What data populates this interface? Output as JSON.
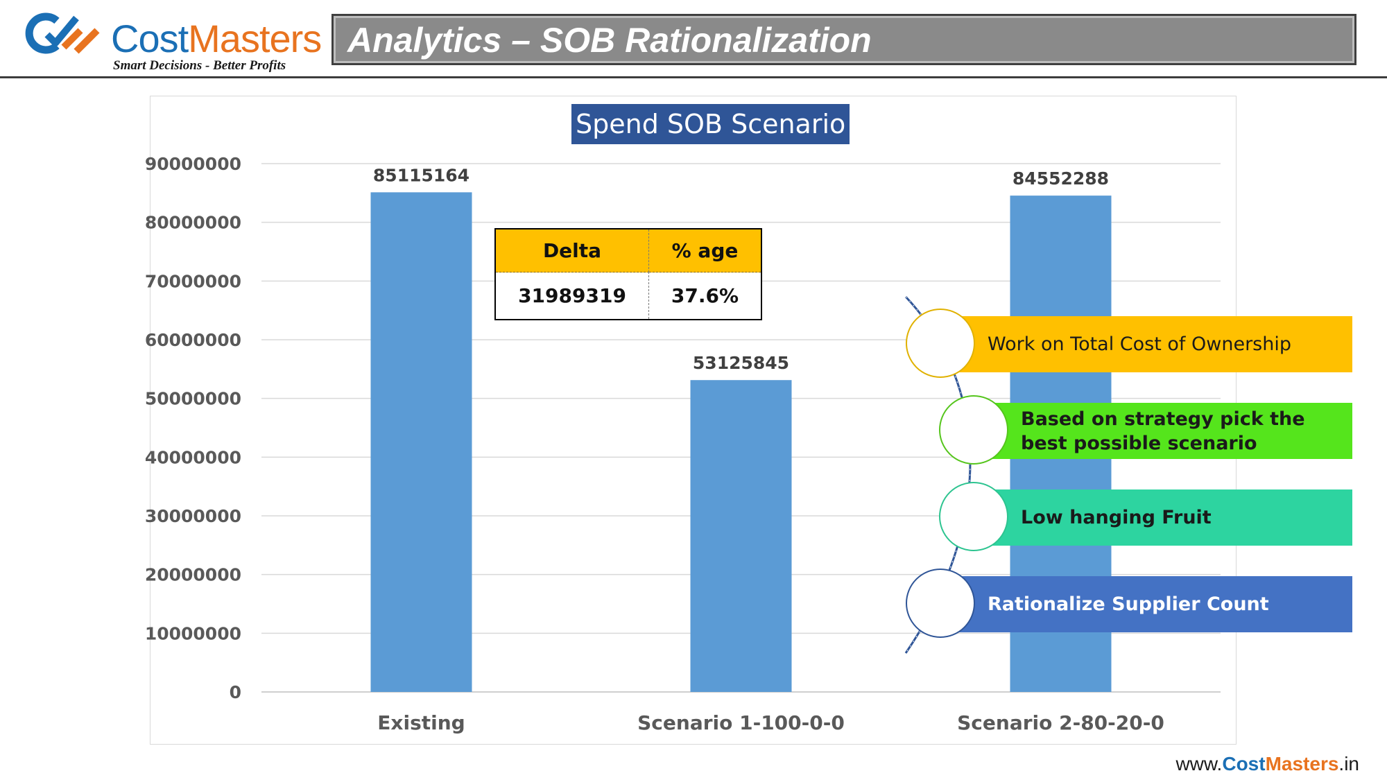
{
  "header": {
    "logo_word_part1": "Cost",
    "logo_word_part2": "Masters",
    "logo_tagline": "Smart Decisions - Better Profits",
    "title": "Analytics – SOB Rationalization"
  },
  "chart_data": {
    "type": "bar",
    "title": "Spend SOB Scenario",
    "categories": [
      "Existing",
      "Scenario 1-100-0-0",
      "Scenario 2-80-20-0"
    ],
    "values": [
      85115164,
      53125845,
      84552288
    ],
    "data_labels": [
      "85115164",
      "53125845",
      "84552288"
    ],
    "ylim": [
      0,
      90000000
    ],
    "yticks": [
      "0",
      "10000000",
      "20000000",
      "30000000",
      "40000000",
      "50000000",
      "60000000",
      "70000000",
      "80000000",
      "90000000"
    ],
    "grid": true,
    "bar_color": "#5b9bd5"
  },
  "delta_table": {
    "headers": [
      "Delta",
      "% age"
    ],
    "values": [
      "31989319",
      "37.6%"
    ]
  },
  "callouts": [
    {
      "text": "Work on Total Cost of Ownership",
      "color": "#ffc000"
    },
    {
      "text": "Based on strategy pick the best possible scenario",
      "color": "#55e51c"
    },
    {
      "text": "Low hanging Fruit",
      "color": "#2dd4a0"
    },
    {
      "text": "Rationalize Supplier Count",
      "color": "#4472c4"
    }
  ],
  "footer": {
    "prefix": "www.",
    "brand1": "Cost",
    "brand2": "Masters",
    "suffix": ".in"
  }
}
